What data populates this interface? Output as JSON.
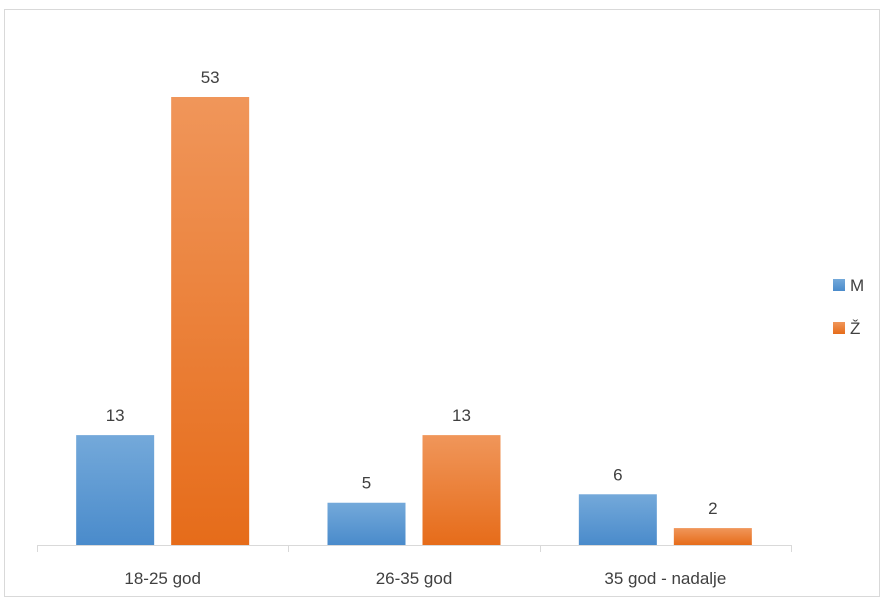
{
  "chart_data": {
    "type": "bar",
    "categories": [
      "18-25 god",
      "26-35 god",
      "35 god - nadalje"
    ],
    "series": [
      {
        "name": "M",
        "values": [
          13,
          5,
          6
        ],
        "color": "#5b9bd5"
      },
      {
        "name": "Ž",
        "values": [
          53,
          13,
          2
        ],
        "color": "#ed7d31"
      }
    ],
    "title": "",
    "xlabel": "",
    "ylabel": "",
    "ylim": [
      0,
      53
    ],
    "grid": false,
    "legend": "right",
    "data_labels": true
  }
}
